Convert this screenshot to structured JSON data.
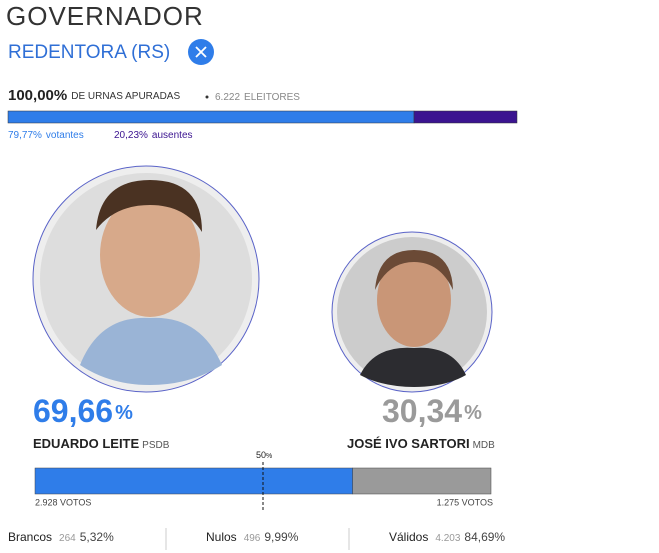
{
  "header": {
    "title": "GOVERNADOR",
    "location": "REDENTORA (RS)"
  },
  "turnout": {
    "counted": "100,00%",
    "counted_label": "DE URNAS APURADAS",
    "voters": "6.222",
    "voters_label": "ELEITORES",
    "present": {
      "value": 79.77,
      "label": "79,77%",
      "name": "votantes",
      "color": "#2f7de9"
    },
    "absent": {
      "value": 20.23,
      "label": "20,23%",
      "name": "ausentes",
      "color": "#3b1490"
    }
  },
  "candidates": [
    {
      "share": 69.66,
      "share_label": "69,66",
      "unit": "%",
      "name": "EDUARDO LEITE",
      "party": "PSDB",
      "votes": "2.928 VOTOS",
      "color": "#2f7de9"
    },
    {
      "share": 30.34,
      "share_label": "30,34",
      "unit": "%",
      "name": "JOSÉ IVO SARTORI",
      "party": "MDB",
      "votes": "1.275 VOTOS",
      "color": "#9a9a9a"
    }
  ],
  "midline": {
    "value": 50,
    "label": "50",
    "unit": "%"
  },
  "totals": [
    {
      "name": "Brancos",
      "count": "264",
      "pct": "5,32%"
    },
    {
      "name": "Nulos",
      "count": "496",
      "pct": "9,99%"
    },
    {
      "name": "Válidos",
      "count": "4.203",
      "pct": "84,69%"
    }
  ]
}
